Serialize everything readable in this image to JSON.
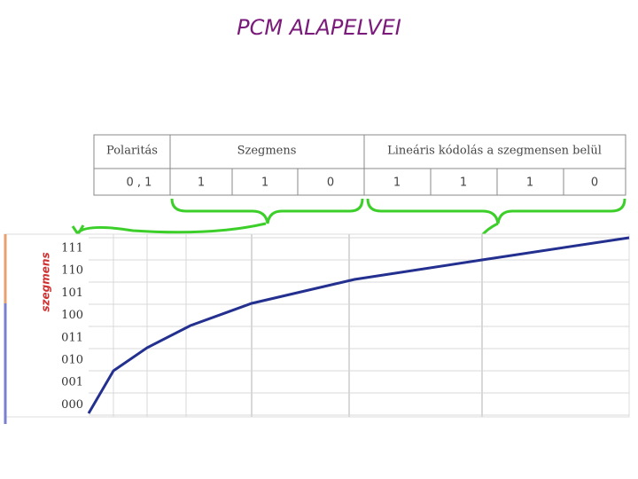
{
  "title": "PCM ALAPELVEI",
  "table": {
    "header": [
      "Polaritás",
      "Szegmens",
      "Lineáris kódolás a szegmensen belül"
    ],
    "row": [
      "0 , 1",
      "1",
      "1",
      "0",
      "1",
      "1",
      "1",
      "0"
    ]
  },
  "chart": {
    "axis_title": "szegmens",
    "y_labels": [
      "111",
      "110",
      "101",
      "100",
      "011",
      "010",
      "001",
      "000"
    ]
  }
}
